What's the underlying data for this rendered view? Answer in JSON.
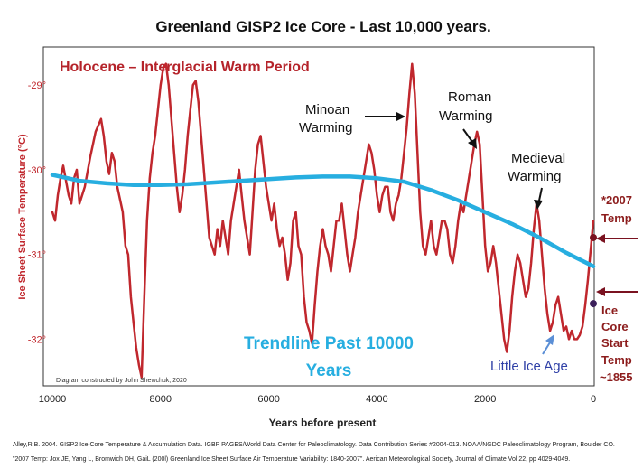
{
  "chart_data": {
    "type": "line",
    "title": "Greenland GISP2 Ice Core - Last 10,000 years.",
    "subtitle": "Holocene – Interglacial Warm Period",
    "xlabel": "Years before present",
    "ylabel": "Ice Sheet Surface Temperature (°C)",
    "xlim": [
      10000,
      0
    ],
    "ylim": [
      -32.55,
      -28.55
    ],
    "x_ticks": [
      "10000",
      "8000",
      "6000",
      "4000",
      "2000",
      "0"
    ],
    "x_tick_values": [
      10000,
      8000,
      6000,
      4000,
      2000,
      0
    ],
    "y_ticks": [
      "-29°",
      "-30°",
      "-31°",
      "-32°"
    ],
    "y_tick_values": [
      -29,
      -30,
      -31,
      -32
    ],
    "series": [
      {
        "color": "#c0272d",
        "x": [
          10000,
          9950,
          9900,
          9850,
          9800,
          9700,
          9650,
          9600,
          9550,
          9500,
          9400,
          9300,
          9200,
          9100,
          9050,
          9000,
          8950,
          8900,
          8850,
          8800,
          8700,
          8650,
          8600,
          8550,
          8500,
          8450,
          8400,
          8350,
          8300,
          8250,
          8200,
          8150,
          8100,
          8050,
          8000,
          7950,
          7900,
          7850,
          7800,
          7750,
          7700,
          7650,
          7600,
          7550,
          7500,
          7450,
          7400,
          7350,
          7300,
          7250,
          7200,
          7150,
          7100,
          7050,
          7000,
          6950,
          6900,
          6850,
          6800,
          6750,
          6700,
          6650,
          6600,
          6550,
          6500,
          6450,
          6400,
          6350,
          6300,
          6250,
          6200,
          6150,
          6100,
          6050,
          6000,
          5950,
          5900,
          5850,
          5800,
          5750,
          5700,
          5650,
          5600,
          5550,
          5500,
          5450,
          5400,
          5350,
          5300,
          5250,
          5200,
          5150,
          5100,
          5050,
          5000,
          4950,
          4900,
          4850,
          4800,
          4750,
          4700,
          4650,
          4600,
          4550,
          4500,
          4450,
          4400,
          4350,
          4300,
          4250,
          4200,
          4150,
          4100,
          4050,
          4000,
          3950,
          3900,
          3850,
          3800,
          3750,
          3700,
          3650,
          3600,
          3550,
          3500,
          3450,
          3400,
          3350,
          3300,
          3250,
          3200,
          3150,
          3100,
          3050,
          3000,
          2950,
          2900,
          2850,
          2800,
          2750,
          2700,
          2650,
          2600,
          2550,
          2500,
          2450,
          2400,
          2350,
          2300,
          2250,
          2200,
          2150,
          2100,
          2050,
          2000,
          1950,
          1900,
          1850,
          1800,
          1750,
          1700,
          1650,
          1600,
          1550,
          1500,
          1450,
          1400,
          1350,
          1300,
          1250,
          1200,
          1150,
          1100,
          1050,
          1000,
          950,
          900,
          850,
          800,
          750,
          700,
          650,
          600,
          550,
          500,
          450,
          400,
          350,
          300,
          250,
          200,
          150,
          100,
          50,
          0
        ],
        "values": [
          -30.5,
          -30.6,
          -30.3,
          -30.1,
          -29.95,
          -30.3,
          -30.4,
          -30.1,
          -30.0,
          -30.4,
          -30.2,
          -29.85,
          -29.55,
          -29.4,
          -29.6,
          -29.9,
          -30.05,
          -29.8,
          -29.9,
          -30.2,
          -30.5,
          -30.9,
          -31.0,
          -31.5,
          -31.8,
          -32.1,
          -32.3,
          -32.45,
          -31.5,
          -30.6,
          -30.1,
          -29.8,
          -29.6,
          -29.3,
          -29.0,
          -28.8,
          -28.75,
          -29.0,
          -29.4,
          -29.8,
          -30.2,
          -30.5,
          -30.3,
          -30.0,
          -29.6,
          -29.3,
          -29.0,
          -28.95,
          -29.2,
          -29.6,
          -30.0,
          -30.4,
          -30.8,
          -30.9,
          -31.0,
          -30.7,
          -30.9,
          -30.6,
          -30.8,
          -31.0,
          -30.6,
          -30.4,
          -30.2,
          -30.0,
          -30.3,
          -30.6,
          -30.8,
          -31.0,
          -30.5,
          -30.0,
          -29.7,
          -29.6,
          -29.9,
          -30.2,
          -30.4,
          -30.6,
          -30.4,
          -30.7,
          -30.9,
          -30.8,
          -31.0,
          -31.3,
          -31.1,
          -30.6,
          -30.5,
          -30.9,
          -31.0,
          -31.5,
          -31.8,
          -31.9,
          -32.05,
          -31.6,
          -31.2,
          -30.9,
          -30.7,
          -30.9,
          -31.0,
          -31.2,
          -30.9,
          -30.6,
          -30.6,
          -30.4,
          -30.7,
          -31.0,
          -31.2,
          -31.0,
          -30.8,
          -30.5,
          -30.3,
          -30.1,
          -29.9,
          -29.7,
          -29.8,
          -30.0,
          -30.3,
          -30.5,
          -30.3,
          -30.2,
          -30.2,
          -30.5,
          -30.6,
          -30.4,
          -30.3,
          -30.1,
          -29.8,
          -29.5,
          -29.1,
          -28.75,
          -29.1,
          -29.8,
          -30.5,
          -30.9,
          -31.0,
          -30.8,
          -30.6,
          -30.9,
          -31.0,
          -30.8,
          -30.6,
          -30.6,
          -30.7,
          -31.0,
          -31.1,
          -30.9,
          -30.6,
          -30.4,
          -30.5,
          -30.3,
          -30.1,
          -29.9,
          -29.7,
          -29.55,
          -29.7,
          -30.3,
          -30.9,
          -31.2,
          -31.1,
          -30.9,
          -31.1,
          -31.4,
          -31.7,
          -32.0,
          -32.15,
          -31.9,
          -31.5,
          -31.2,
          -31.0,
          -31.1,
          -31.3,
          -31.5,
          -31.4,
          -31.1,
          -30.7,
          -30.4,
          -30.6,
          -31.0,
          -31.4,
          -31.7,
          -31.9,
          -31.8,
          -31.6,
          -31.5,
          -31.7,
          -31.9,
          -31.85,
          -32.0,
          -31.9,
          -32.0,
          -32.0,
          -31.95,
          -31.85,
          -31.6,
          -31.3,
          -30.95,
          -30.6
        ]
      },
      {
        "name": "Trendline Past 10000 Years",
        "color": "#27aee0",
        "x": [
          10000,
          9500,
          9000,
          8500,
          8000,
          7500,
          7000,
          6500,
          6000,
          5500,
          5000,
          4500,
          4000,
          3500,
          3000,
          2500,
          2000,
          1500,
          1000,
          500,
          0
        ],
        "values": [
          -30.06,
          -30.13,
          -30.16,
          -30.18,
          -30.18,
          -30.17,
          -30.15,
          -30.13,
          -30.11,
          -30.09,
          -30.08,
          -30.08,
          -30.1,
          -30.14,
          -30.24,
          -30.36,
          -30.5,
          -30.64,
          -30.8,
          -30.98,
          -31.14
        ]
      }
    ],
    "markers": [
      {
        "year": 0,
        "value": -30.8,
        "color": "#7a1220"
      },
      {
        "year": 0,
        "value": -31.58,
        "color": "#3b1f5a"
      }
    ],
    "annotations": {
      "minoan": [
        "Minoan",
        "Warming"
      ],
      "roman": [
        "Roman",
        "Warming"
      ],
      "medieval": [
        "Medieval",
        "Warming"
      ],
      "temp2007": [
        "*2007",
        "Temp"
      ],
      "start": [
        "Ice",
        "Core",
        "Start",
        "Temp",
        "~1855"
      ],
      "trendline": [
        "Trendline Past 10000",
        "Years"
      ],
      "lia": "Little Ice Age",
      "credit": "Diagram constructed by John Shewchuk, 2020"
    },
    "annotation_colors": {
      "arrow": "#111111",
      "side_arrow": "#7a1220",
      "lia_arrow": "#5b8fd6"
    }
  },
  "footer": {
    "line1": "Alley,R.B. 2004. GISP2 Ice Core Temperature & Accumulation Data. IGBP PAGES/World Data Center for Paleoclimatology. Data Contribution Series #2004-013. NOAA/NGDC Paleoclimatology Program, Boulder CO.",
    "line2": "\"2007 Temp: Jox JE, Yang L, Bromwich DH, GaiL (200l) Greenland Ice Sheet Surface Air Temperature Variability: 1840-2007\". Aerican Meteorological Society, Journal of Climate Vol 22, pp 4029-4049."
  }
}
